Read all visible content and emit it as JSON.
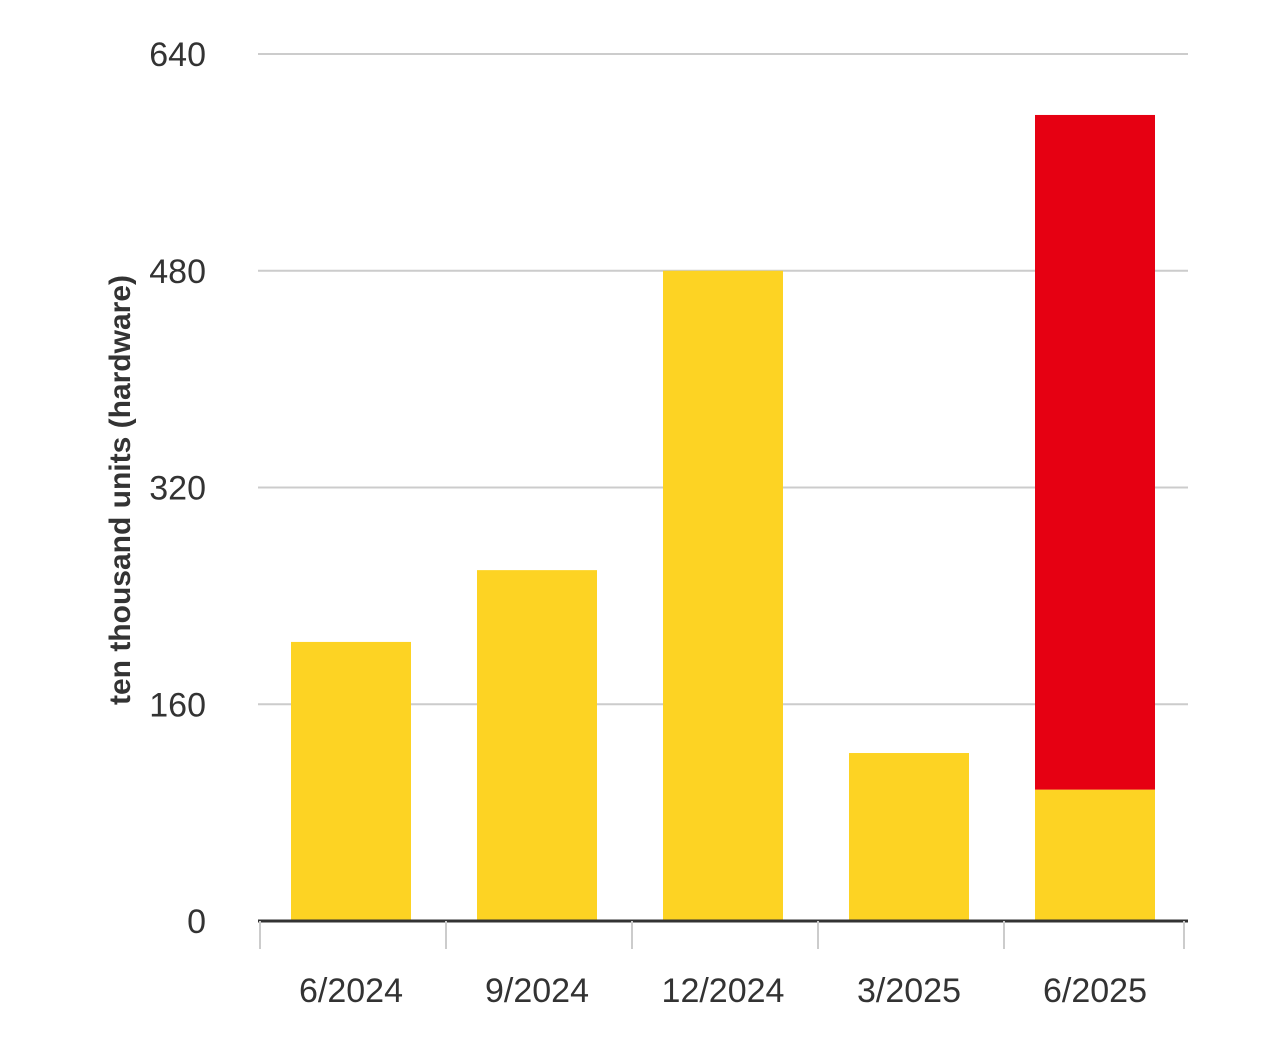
{
  "chart_data": {
    "type": "bar",
    "stacked": true,
    "ylabel": "ten thousand units (hardware)",
    "xlabel": "",
    "categories": [
      "6/2024",
      "9/2024",
      "12/2024",
      "3/2025",
      "6/2025"
    ],
    "yticks": [
      "0",
      "160",
      "320",
      "480",
      "640"
    ],
    "ylim": [
      0,
      640
    ],
    "grid": true,
    "series": [
      {
        "color": "#FDD323",
        "values": [
          206,
          259,
          480,
          124,
          97
        ]
      },
      {
        "color": "#E60012",
        "values": [
          0,
          0,
          0,
          0,
          498
        ]
      }
    ]
  }
}
